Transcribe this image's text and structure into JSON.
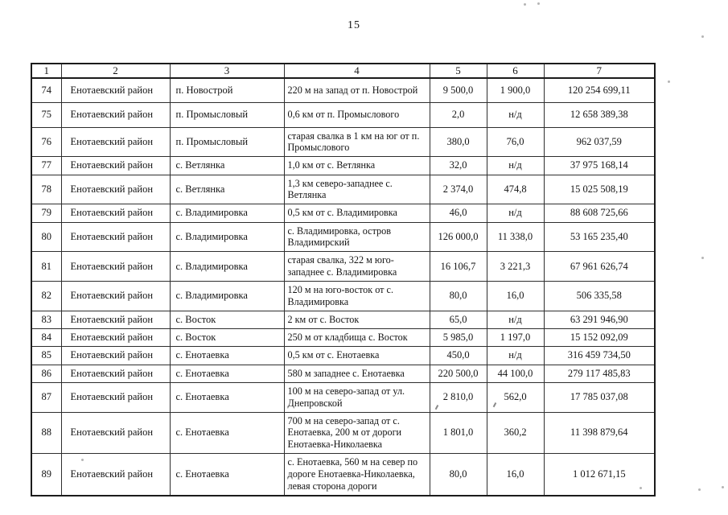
{
  "page": {
    "number": "15"
  },
  "table": {
    "headers": [
      "1",
      "2",
      "3",
      "4",
      "5",
      "6",
      "7"
    ],
    "rows": [
      [
        "74",
        "Енотаевский район",
        "п. Новострой",
        "220 м на запад от п. Новострой",
        "9 500,0",
        "1 900,0",
        "120 254 699,11"
      ],
      [
        "75",
        "Енотаевский район",
        "п. Промысловый",
        "0,6 км от п. Промыслового",
        "2,0",
        "н/д",
        "12 658 389,38"
      ],
      [
        "76",
        "Енотаевский район",
        "п. Промысловый",
        "старая свалка в 1 км на юг от п. Промыслового",
        "380,0",
        "76,0",
        "962 037,59"
      ],
      [
        "77",
        "Енотаевский район",
        "с. Ветлянка",
        "1,0 км от с. Ветлянка",
        "32,0",
        "н/д",
        "37 975 168,14"
      ],
      [
        "78",
        "Енотаевский район",
        "с. Ветлянка",
        "1,3 км северо-западнее с. Ветлянка",
        "2 374,0",
        "474,8",
        "15 025 508,19"
      ],
      [
        "79",
        "Енотаевский район",
        "с. Владимировка",
        "0,5 км от с. Владимировка",
        "46,0",
        "н/д",
        "88 608 725,66"
      ],
      [
        "80",
        "Енотаевский район",
        "с. Владимировка",
        "с. Владимировка, остров Владимирский",
        "126 000,0",
        "11 338,0",
        "53 165 235,40"
      ],
      [
        "81",
        "Енотаевский район",
        "с. Владимировка",
        "старая свалка, 322 м юго-западнее с. Владимировка",
        "16 106,7",
        "3 221,3",
        "67 961 626,74"
      ],
      [
        "82",
        "Енотаевский район",
        "с. Владимировка",
        "120 м на юго-восток от с. Владимировка",
        "80,0",
        "16,0",
        "506 335,58"
      ],
      [
        "83",
        "Енотаевский район",
        "с. Восток",
        "2 км от с. Восток",
        "65,0",
        "н/д",
        "63 291 946,90"
      ],
      [
        "84",
        "Енотаевский район",
        "с. Восток",
        "250 м от кладбища с. Восток",
        "5 985,0",
        "1 197,0",
        "15 152 092,09"
      ],
      [
        "85",
        "Енотаевский район",
        "с. Енотаевка",
        "0,5 км от с. Енотаевка",
        "450,0",
        "н/д",
        "316 459 734,50"
      ],
      [
        "86",
        "Енотаевский район",
        "с. Енотаевка",
        "580 м западнее с. Енотаевка",
        "220 500,0",
        "44 100,0",
        "279 117 485,83"
      ],
      [
        "87",
        "Енотаевский район",
        "с. Енотаевка",
        "100 м на северо-запад от ул. Днепровской",
        "2 810,0",
        "562,0",
        "17 785 037,08"
      ],
      [
        "88",
        "Енотаевский район",
        "с. Енотаевка",
        "700 м на северо-запад от с. Енотаевка, 200 м от дороги Енотаевка-Николаевка",
        "1 801,0",
        "360,2",
        "11 398 879,64"
      ],
      [
        "89",
        "Енотаевский район",
        "с. Енотаевка",
        "с. Енотаевка, 560 м на север по дороге Енотаевка-Николаевка, левая сторона дороги",
        "80,0",
        "16,0",
        "1 012 671,15"
      ]
    ]
  }
}
